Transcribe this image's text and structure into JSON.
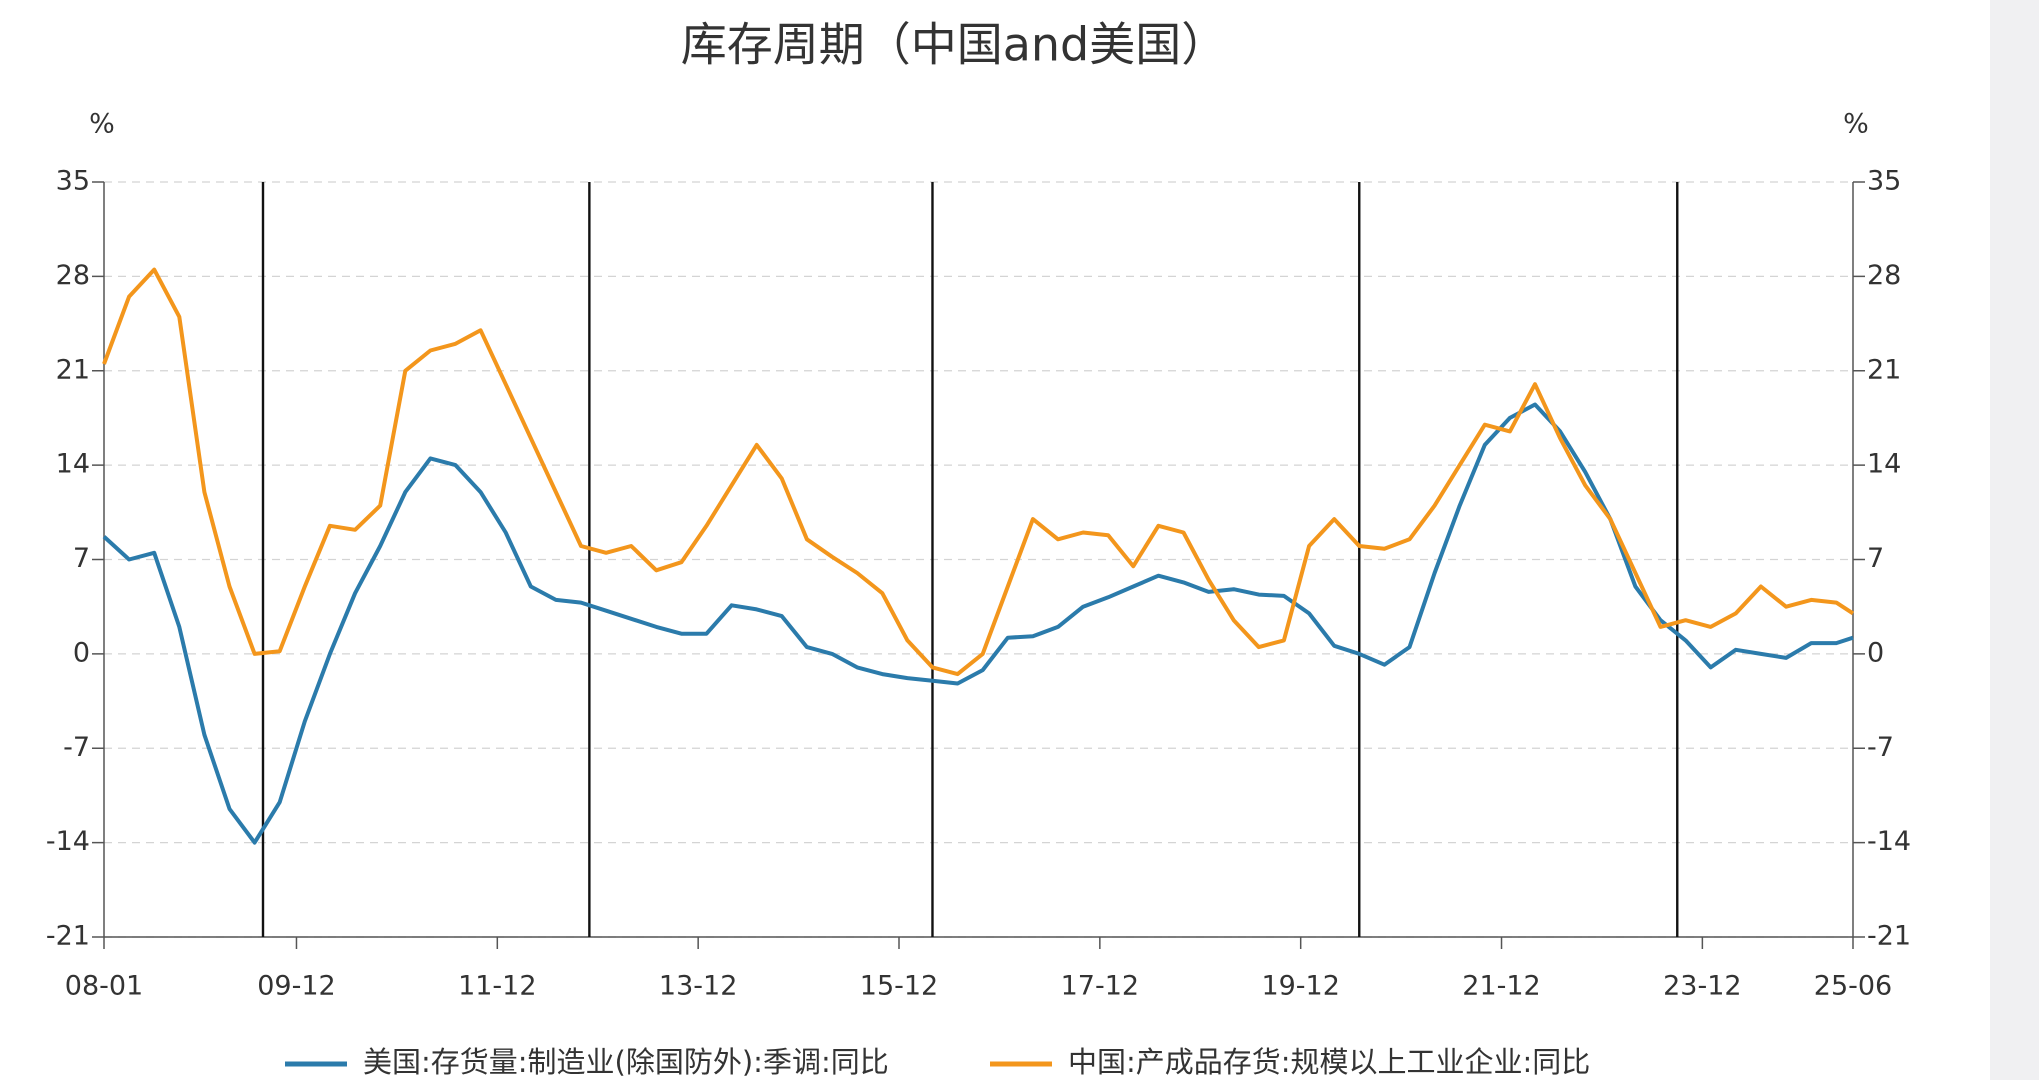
{
  "chart_data": {
    "type": "line",
    "title": "库存周期（中国and美国）",
    "ylabel": "%",
    "y2label": "%",
    "x": [
      "08-01",
      "08-04",
      "08-07",
      "08-10",
      "09-01",
      "09-04",
      "09-07",
      "09-10",
      "10-01",
      "10-04",
      "10-07",
      "10-10",
      "11-01",
      "11-04",
      "11-07",
      "11-10",
      "12-01",
      "12-04",
      "12-07",
      "12-10",
      "13-01",
      "13-04",
      "13-07",
      "13-10",
      "14-01",
      "14-04",
      "14-07",
      "14-10",
      "15-01",
      "15-04",
      "15-07",
      "15-10",
      "16-01",
      "16-04",
      "16-07",
      "16-10",
      "17-01",
      "17-04",
      "17-07",
      "17-10",
      "18-01",
      "18-04",
      "18-07",
      "18-10",
      "19-01",
      "19-04",
      "19-07",
      "19-10",
      "20-01",
      "20-04",
      "20-07",
      "20-10",
      "21-01",
      "21-04",
      "21-07",
      "21-10",
      "22-01",
      "22-04",
      "22-07",
      "22-10",
      "23-01",
      "23-04",
      "23-07",
      "23-10",
      "24-01",
      "24-04",
      "24-07",
      "24-10",
      "25-01",
      "25-04",
      "25-06"
    ],
    "series": [
      {
        "name": "美国:存货量:制造业(除国防外):季调:同比",
        "color": "#2b7bab",
        "axis": "y",
        "values": [
          8.7,
          7.0,
          7.5,
          2,
          -6,
          -11.5,
          -14,
          -11,
          -5,
          0,
          4.5,
          8,
          12,
          14.5,
          14,
          12,
          9,
          5,
          4,
          3.8,
          3.2,
          2.6,
          2.0,
          1.5,
          1.5,
          3.6,
          3.3,
          2.8,
          0.5,
          0,
          -1,
          -1.5,
          -1.8,
          -2.0,
          -2.2,
          -1.2,
          1.2,
          1.3,
          2,
          3.5,
          4.2,
          5,
          5.8,
          5.3,
          4.6,
          4.8,
          4.4,
          4.3,
          3,
          0.6,
          0,
          -0.8,
          0.5,
          6,
          11,
          15.5,
          17.5,
          18.5,
          16.5,
          13.5,
          10,
          5,
          2.5,
          1,
          -1,
          0.3,
          0,
          -0.3,
          0.8,
          0.8,
          1.2
        ]
      },
      {
        "name": "中国:产成品存货:规模以上工业企业:同比",
        "color": "#f3961c",
        "axis": "y2",
        "values": [
          21.5,
          26.5,
          28.5,
          25,
          12,
          5,
          0,
          0.2,
          5,
          9.5,
          9.2,
          11,
          21,
          22.5,
          23,
          24,
          20,
          16,
          12,
          8,
          7.5,
          8,
          6.2,
          6.8,
          9.5,
          12.5,
          15.5,
          13,
          8.5,
          7.2,
          6,
          4.5,
          1,
          -1,
          -1.5,
          0,
          5,
          10,
          8.5,
          9,
          8.8,
          6.5,
          9.5,
          9,
          5.5,
          2.5,
          0.5,
          1,
          8,
          10,
          8,
          7.8,
          8.5,
          11,
          14,
          17,
          16.5,
          20,
          16,
          12.5,
          10,
          6,
          2,
          2.5,
          2,
          3,
          5,
          3.5,
          4,
          3.8,
          3
        ]
      }
    ],
    "xlim": [
      "08-01",
      "25-06"
    ],
    "xticks": [
      "08-01",
      "09-12",
      "11-12",
      "13-12",
      "15-12",
      "17-12",
      "19-12",
      "21-12",
      "23-12",
      "25-06"
    ],
    "ylim": [
      -21,
      35
    ],
    "yticks": [
      -21,
      -14,
      -7,
      0,
      7,
      14,
      21,
      28,
      35
    ],
    "y2lim": [
      -21,
      35
    ],
    "y2ticks": [
      -21,
      -14,
      -7,
      0,
      7,
      14,
      21,
      28,
      35
    ],
    "vlines": [
      "09-08",
      "12-11",
      "16-04",
      "20-07",
      "23-09"
    ],
    "grid": true,
    "legend": "bottom"
  }
}
